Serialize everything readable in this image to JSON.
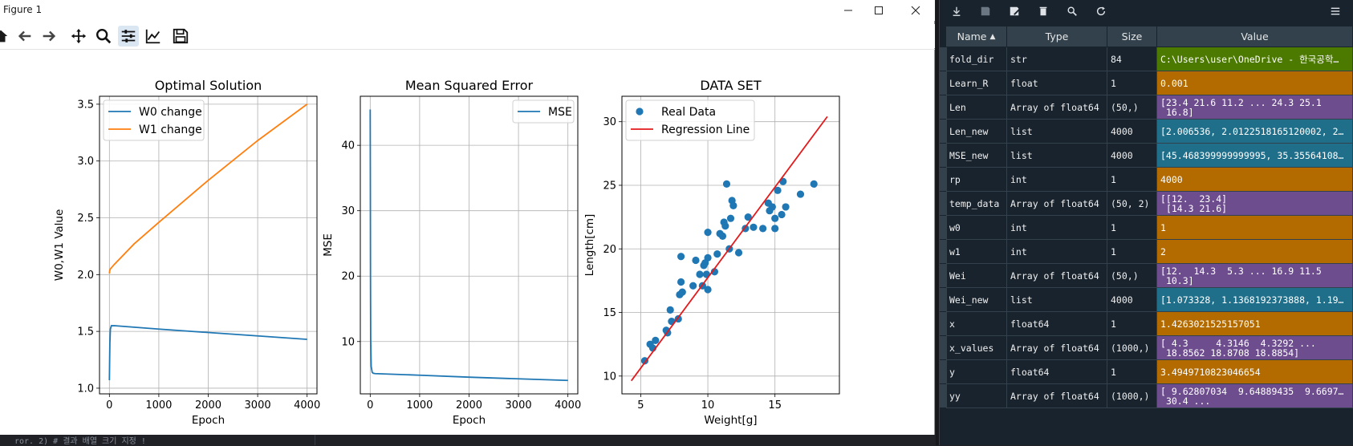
{
  "window": {
    "title": "Figure 1",
    "controls": [
      "minimize",
      "maximize",
      "close"
    ]
  },
  "toolbar": {
    "icons": [
      "home-icon",
      "back-arrow-icon",
      "forward-arrow-icon",
      "pan-icon",
      "zoom-icon",
      "configure-subplots-icon",
      "edit-axis-icon",
      "save-figure-icon"
    ]
  },
  "chart_data": [
    {
      "type": "line",
      "title": "Optimal Solution",
      "xlabel": "Epoch",
      "ylabel": "W0,W1 Value",
      "xlim": [
        -200,
        4200
      ],
      "ylim": [
        0.95,
        3.57
      ],
      "xticks": [
        0,
        1000,
        2000,
        3000,
        4000
      ],
      "yticks": [
        1.0,
        1.5,
        2.0,
        2.5,
        3.0,
        3.5
      ],
      "grid": true,
      "legend": "top-left",
      "series": [
        {
          "name": "W0 change",
          "color": "#1f77b4",
          "x": [
            0,
            5,
            10,
            20,
            40,
            60,
            100,
            1000,
            2000,
            3000,
            4000
          ],
          "y": [
            1.07,
            1.25,
            1.4,
            1.52,
            1.55,
            1.55,
            1.55,
            1.52,
            1.49,
            1.46,
            1.43
          ]
        },
        {
          "name": "W1 change",
          "color": "#ff7f0e",
          "x": [
            0,
            5,
            10,
            20,
            40,
            100,
            500,
            1000,
            2000,
            3000,
            4000
          ],
          "y": [
            2.01,
            2.03,
            2.04,
            2.05,
            2.06,
            2.09,
            2.27,
            2.46,
            2.83,
            3.18,
            3.5
          ]
        }
      ]
    },
    {
      "type": "line",
      "title": "Mean Squared Error",
      "xlabel": "Epoch",
      "ylabel": "MSE",
      "xlim": [
        -200,
        4200
      ],
      "ylim": [
        2.0,
        47.5
      ],
      "xticks": [
        0,
        1000,
        2000,
        3000,
        4000
      ],
      "yticks": [
        10,
        20,
        30,
        40
      ],
      "grid": true,
      "legend": "top-right",
      "series": [
        {
          "name": "MSE",
          "color": "#1f77b4",
          "x": [
            0,
            3,
            6,
            10,
            20,
            40,
            60,
            100,
            1000,
            2000,
            3000,
            4000
          ],
          "y": [
            45.47,
            35.36,
            20.0,
            10.5,
            6.2,
            5.3,
            5.15,
            5.1,
            4.85,
            4.55,
            4.3,
            4.05
          ]
        }
      ]
    },
    {
      "type": "scatter",
      "title": "DATA SET",
      "xlabel": "Weight[g]",
      "ylabel": "Length[cm]",
      "xlim": [
        3.6,
        19.8
      ],
      "ylim": [
        8.6,
        32.0
      ],
      "xticks": [
        5,
        10,
        15
      ],
      "yticks": [
        10,
        15,
        20,
        25,
        30
      ],
      "grid": true,
      "legend": "top-left",
      "series": [
        {
          "name": "Real Data",
          "color": "#1f77b4",
          "points": [
            [
              5.3,
              11.2
            ],
            [
              5.7,
              12.5
            ],
            [
              5.9,
              12.2
            ],
            [
              6.1,
              12.8
            ],
            [
              6.9,
              13.6
            ],
            [
              7.0,
              13.4
            ],
            [
              7.2,
              15.2
            ],
            [
              7.3,
              14.3
            ],
            [
              7.8,
              14.5
            ],
            [
              7.9,
              16.4
            ],
            [
              8.0,
              17.4
            ],
            [
              8.0,
              19.4
            ],
            [
              8.1,
              16.6
            ],
            [
              8.9,
              17.1
            ],
            [
              9.1,
              19.1
            ],
            [
              9.4,
              18.0
            ],
            [
              9.6,
              17.1
            ],
            [
              9.7,
              18.7
            ],
            [
              9.9,
              18.0
            ],
            [
              10.0,
              16.8
            ],
            [
              10.0,
              19.3
            ],
            [
              10.0,
              21.3
            ],
            [
              10.5,
              18.2
            ],
            [
              10.7,
              19.6
            ],
            [
              10.9,
              21.2
            ],
            [
              11.1,
              21.0
            ],
            [
              11.2,
              22.1
            ],
            [
              11.3,
              21.8
            ],
            [
              11.4,
              25.1
            ],
            [
              11.6,
              20.0
            ],
            [
              11.7,
              22.4
            ],
            [
              11.8,
              23.8
            ],
            [
              11.9,
              23.4
            ],
            [
              12.3,
              19.7
            ],
            [
              12.8,
              21.6
            ],
            [
              13.0,
              22.5
            ],
            [
              13.4,
              21.7
            ],
            [
              14.1,
              21.6
            ],
            [
              14.5,
              23.6
            ],
            [
              14.8,
              23.3
            ],
            [
              15.0,
              21.6
            ],
            [
              15.0,
              22.4
            ],
            [
              15.2,
              24.6
            ],
            [
              15.5,
              22.7
            ],
            [
              15.6,
              25.3
            ],
            [
              15.8,
              23.3
            ],
            [
              16.9,
              24.3
            ],
            [
              17.9,
              25.1
            ],
            [
              14.6,
              23.0
            ],
            [
              9.8,
              18.9
            ]
          ]
        },
        {
          "name": "Regression Line",
          "color": "#e31a1c",
          "x": [
            4.3,
            18.9
          ],
          "y": [
            9.63,
            30.4
          ]
        }
      ]
    }
  ],
  "variable_explorer": {
    "toolbar_icons": [
      "import-data-icon",
      "save-data-icon",
      "save-as-icon",
      "remove-all-icon",
      "search-icon",
      "refresh-icon",
      "options-menu-icon"
    ],
    "columns": [
      "Name",
      "Type",
      "Size",
      "Value"
    ],
    "sort_indicator": "▲",
    "rows": [
      {
        "name": "fold_dir",
        "type": "str",
        "size": "84",
        "value": "C:\\Users\\user\\OneDrive - 한국공학…",
        "color": "#4c7a00"
      },
      {
        "name": "Learn_R",
        "type": "float",
        "size": "1",
        "value": "0.001",
        "color": "#b36b00"
      },
      {
        "name": "Len",
        "type": "Array of float64",
        "size": "(50,)",
        "value": "[23.4 21.6 11.2 ... 24.3 25.1\n 16.8]",
        "color": "#6e4d8f"
      },
      {
        "name": "Len_new",
        "type": "list",
        "size": "4000",
        "value": "[2.006536, 2.0122518165120002, 2…",
        "color": "#1f6f8b"
      },
      {
        "name": "MSE_new",
        "type": "list",
        "size": "4000",
        "value": "[45.468399999999995, 35.35564108…",
        "color": "#1f6f8b"
      },
      {
        "name": "rp",
        "type": "int",
        "size": "1",
        "value": "4000",
        "color": "#b36b00"
      },
      {
        "name": "temp_data",
        "type": "Array of float64",
        "size": "(50, 2)",
        "value": "[[12.  23.4]\n [14.3 21.6]",
        "color": "#6e4d8f"
      },
      {
        "name": "w0",
        "type": "int",
        "size": "1",
        "value": "1",
        "color": "#b36b00"
      },
      {
        "name": "w1",
        "type": "int",
        "size": "1",
        "value": "2",
        "color": "#b36b00"
      },
      {
        "name": "Wei",
        "type": "Array of float64",
        "size": "(50,)",
        "value": "[12.  14.3  5.3 ... 16.9 11.5\n 10.3]",
        "color": "#6e4d8f"
      },
      {
        "name": "Wei_new",
        "type": "list",
        "size": "4000",
        "value": "[1.073328, 1.1368192373888, 1.19…",
        "color": "#1f6f8b"
      },
      {
        "name": "x",
        "type": "float64",
        "size": "1",
        "value": "1.4263021525157051",
        "color": "#b36b00"
      },
      {
        "name": "x_values",
        "type": "Array of float64",
        "size": "(1000,)",
        "value": "[ 4.3     4.3146  4.3292 ...\n 18.8562 18.8708 18.8854]",
        "color": "#6e4d8f"
      },
      {
        "name": "y",
        "type": "float64",
        "size": "1",
        "value": "3.4949710823046654",
        "color": "#b36b00"
      },
      {
        "name": "yy",
        "type": "Array of float64",
        "size": "(1000,)",
        "value": "[ 9.62807034  9.64889435  9.6697…\n 30.4 ...",
        "color": "#6e4d8f"
      }
    ]
  },
  "background_code_text": "ror.    2)  # 결과 배열 크기 지정 !"
}
